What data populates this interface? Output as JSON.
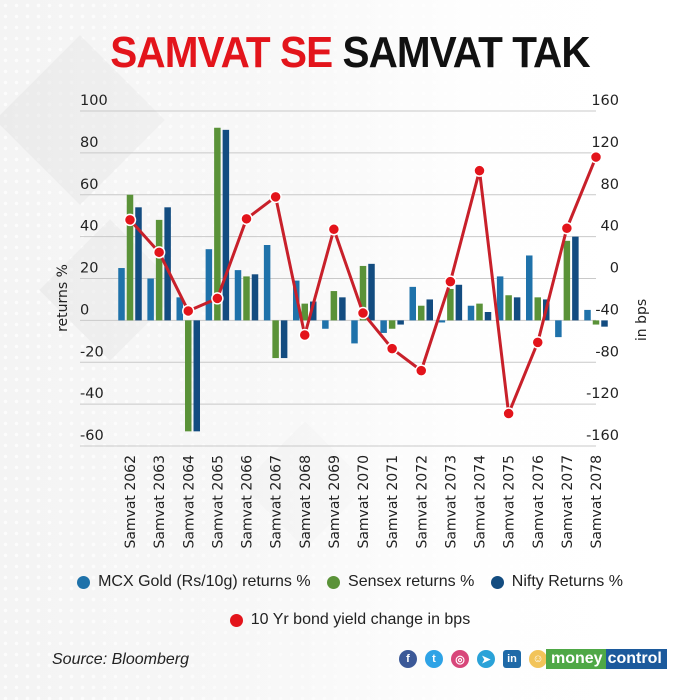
{
  "title": {
    "part1": "SAMVAT SE",
    "part2": "SAMVAT TAK"
  },
  "colors": {
    "gold": "#1f72aa",
    "sensex": "#5a9238",
    "nifty": "#134c80",
    "bond": "#e3141b",
    "bond_line": "#c8202a",
    "title_red": "#e3141b"
  },
  "chart_data": {
    "type": "bar",
    "title": "SAMVAT SE SAMVAT TAK",
    "xlabel": "",
    "ylabel": "returns %",
    "y2label": "in bps",
    "ylim": [
      -60,
      100
    ],
    "y2lim": [
      -160,
      160
    ],
    "yticks": [
      100,
      80,
      60,
      40,
      20,
      0,
      -20,
      -40,
      -60
    ],
    "y2ticks": [
      160,
      120,
      80,
      40,
      0,
      -40,
      -80,
      -120,
      -160
    ],
    "grid": true,
    "legend_position": "bottom",
    "categories": [
      "Samvat 2062",
      "Samvat 2063",
      "Samvat 2064",
      "Samvat 2065",
      "Samvat 2066",
      "Samvat 2067",
      "Samvat 2068",
      "Samvat 2069",
      "Samvat 2070",
      "Samvat 2071",
      "Samvat 2072",
      "Samvat 2073",
      "Samvat 2074",
      "Samvat 2075",
      "Samvat 2076",
      "Samvat 2077",
      "Samvat 2078"
    ],
    "series": [
      {
        "name": "MCX Gold (Rs/10g) returns %",
        "type": "bar",
        "axis": "left",
        "values": [
          25,
          20,
          11,
          34,
          24,
          36,
          19,
          -4,
          -11,
          -6,
          16,
          -1,
          7,
          21,
          31,
          -8,
          5
        ]
      },
      {
        "name": "Sensex returns %",
        "type": "bar",
        "axis": "left",
        "values": [
          60,
          48,
          -53,
          92,
          21,
          -18,
          8,
          14,
          26,
          -4,
          7,
          15,
          8,
          12,
          11,
          38,
          -2
        ]
      },
      {
        "name": "Nifty Returns %",
        "type": "bar",
        "axis": "left",
        "values": [
          54,
          54,
          -53,
          91,
          22,
          -18,
          9,
          11,
          27,
          -2,
          10,
          17,
          4,
          11,
          10,
          40,
          -3
        ]
      },
      {
        "name": "10 Yr bond yield change in bps",
        "type": "line",
        "axis": "right",
        "values": [
          56,
          25,
          -31,
          -19,
          57,
          78,
          -54,
          47,
          -33,
          -67,
          -88,
          -3,
          103,
          -129,
          -61,
          48,
          116
        ]
      }
    ]
  },
  "legend": {
    "items": [
      {
        "label": "MCX Gold (Rs/10g) returns %",
        "color": "#1f72aa"
      },
      {
        "label": "Sensex returns %",
        "color": "#5a9238"
      },
      {
        "label": "Nifty Returns %",
        "color": "#134c80"
      },
      {
        "label": "10 Yr bond yield change in bps",
        "color": "#e3141b"
      }
    ]
  },
  "footer": {
    "source": "Source: Bloomberg",
    "social_icons": [
      "facebook-icon",
      "twitter-icon",
      "instagram-icon",
      "telegram-icon",
      "linkedin-icon",
      "snapchat-icon"
    ],
    "brand_part1": "money",
    "brand_part2": "control"
  }
}
